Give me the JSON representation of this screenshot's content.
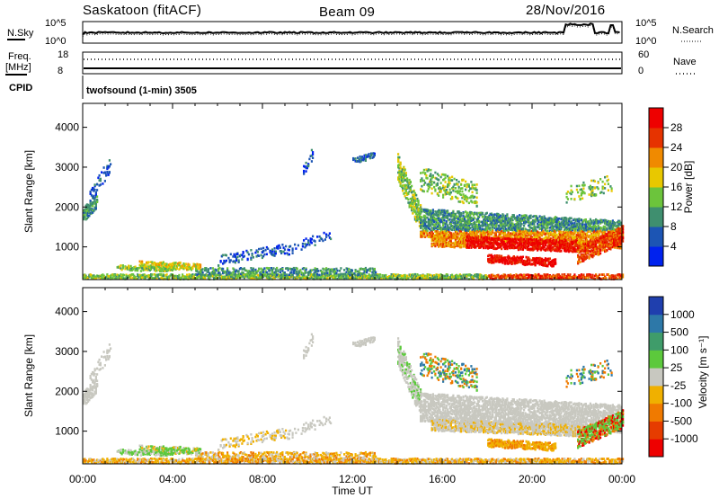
{
  "header": {
    "station": "Saskatoon (fitACF)",
    "beam": "Beam 09",
    "date": "28/Nov/2016"
  },
  "info_panels": {
    "nsky_label": "N.Sky",
    "nsky_ticks": [
      "10^5",
      "10^0"
    ],
    "nsearch_label": "N.Search",
    "freq_label_line1": "Freq.",
    "freq_label_line2": "[MHz]",
    "freq_ticks": [
      "18",
      "8"
    ],
    "nave_label": "Nave",
    "nave_ticks": [
      "60",
      "0"
    ],
    "nsearch_ticks": [
      "10^5",
      "10^0"
    ],
    "cpid_label": "CPID",
    "cpid_text": "twofsound (1-min) 3505"
  },
  "chart_data": [
    {
      "type": "heatmap",
      "name": "power-panel",
      "ylabel": "Slant Range [km]",
      "y_ticks": [
        1000,
        2000,
        3000,
        4000
      ],
      "ylim": [
        180,
        4600
      ],
      "x_ticks": [
        "00:00",
        "04:00",
        "08:00",
        "12:00",
        "16:00",
        "20:00",
        "00:00"
      ],
      "x_hours": [
        0,
        4,
        8,
        12,
        16,
        20,
        24
      ],
      "colorbar_label": "Power [dB]",
      "colorbar_ticks": [
        "4",
        "8",
        "12",
        "16",
        "20",
        "24",
        "28"
      ],
      "colors": [
        "#0022ee",
        "#1c55b4",
        "#3f8f6f",
        "#6cc43c",
        "#e8c800",
        "#f08a00",
        "#e63300",
        "#ee0000"
      ]
    },
    {
      "type": "heatmap",
      "name": "velocity-panel",
      "ylabel": "Slant Range [km]",
      "y_ticks": [
        1000,
        2000,
        3000,
        4000
      ],
      "ylim": [
        180,
        4600
      ],
      "x_ticks": [
        "00:00",
        "04:00",
        "08:00",
        "12:00",
        "16:00",
        "20:00",
        "00:00"
      ],
      "x_hours": [
        0,
        4,
        8,
        12,
        16,
        20,
        24
      ],
      "xlabel": "Time UT",
      "colorbar_label": "Velocity [m s⁻¹]",
      "colorbar_ticks": [
        "1000",
        "500",
        "100",
        "25",
        "-25",
        "-100",
        "-500",
        "-1000"
      ],
      "colors": [
        "#1f3fae",
        "#2d78a8",
        "#3f9c6a",
        "#5cc93c",
        "#c8c8c0",
        "#f0b000",
        "#f07a00",
        "#e63c00",
        "#ee0000"
      ]
    }
  ]
}
